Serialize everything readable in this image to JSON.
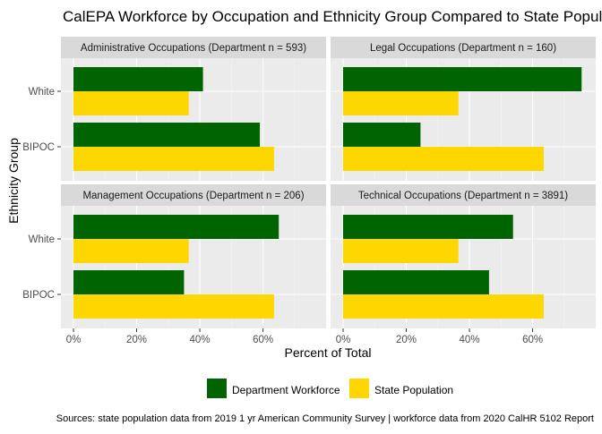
{
  "chart_data": {
    "type": "bar",
    "orientation": "horizontal",
    "title": "CalEPA Workforce by Occupation and Ethnicity Group Compared to State Population",
    "xlabel": "Percent of Total",
    "ylabel": "Ethnicity Group",
    "categories": [
      "White",
      "BIPOC"
    ],
    "x_ticks": [
      "0%",
      "20%",
      "40%",
      "60%"
    ],
    "xlim": [
      0,
      76
    ],
    "grid": true,
    "legend_position": "bottom",
    "series_names": [
      "Department Workforce",
      "State Population"
    ],
    "colors": {
      "Department Workforce": "#006400",
      "State Population": "#FFD700"
    },
    "panels": [
      {
        "label": "Administrative Occupations (Department n = 593)",
        "series": [
          {
            "name": "Department Workforce",
            "values": [
              41,
              59
            ]
          },
          {
            "name": "State Population",
            "values": [
              36.5,
              63.5
            ]
          }
        ]
      },
      {
        "label": "Legal Occupations (Department n = 160)",
        "series": [
          {
            "name": "Department Workforce",
            "values": [
              75.5,
              24.5
            ]
          },
          {
            "name": "State Population",
            "values": [
              36.5,
              63.5
            ]
          }
        ]
      },
      {
        "label": "Management Occupations (Department n = 206)",
        "series": [
          {
            "name": "Department Workforce",
            "values": [
              65,
              35
            ]
          },
          {
            "name": "State Population",
            "values": [
              36.5,
              63.5
            ]
          }
        ]
      },
      {
        "label": "Technical Occupations (Department n = 3891)",
        "series": [
          {
            "name": "Department Workforce",
            "values": [
              53.8,
              46.2
            ]
          },
          {
            "name": "State Population",
            "values": [
              36.5,
              63.5
            ]
          }
        ]
      }
    ],
    "caption": "Sources: state population data from 2019 1 yr American Community Survey  |  workforce data from 2020 CalHR 5102 Report"
  }
}
